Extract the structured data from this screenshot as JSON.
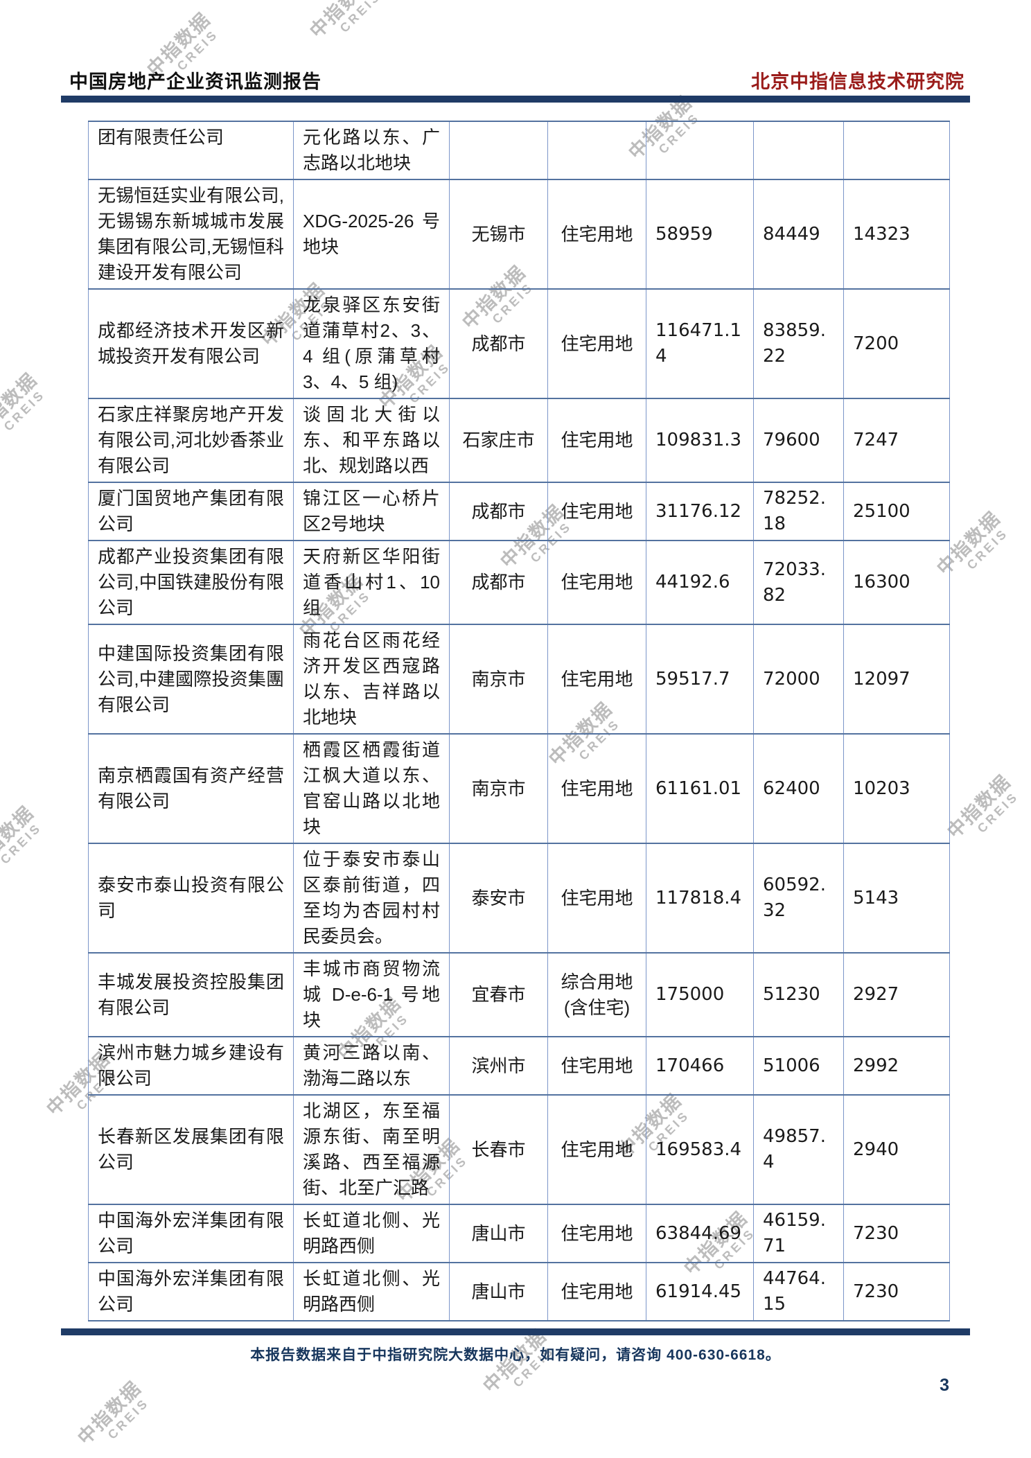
{
  "header": {
    "left_title": "中国房地产企业资讯监测报告",
    "right_title": "北京中指信息技术研究院"
  },
  "watermark": {
    "line1": "中指数据",
    "line2": "CREIS"
  },
  "table": {
    "rows": [
      {
        "company": "团有限责任公司",
        "parcel": "元化路以东、广志路以北地块",
        "city": "",
        "use": "",
        "num1": "",
        "num2": "",
        "num3": ""
      },
      {
        "company": "无锡恒廷实业有限公司,无锡锡东新城城市发展集团有限公司,无锡恒科建设开发有限公司",
        "parcel": "XDG-2025-26 号地块",
        "city": "无锡市",
        "use": "住宅用地",
        "num1": "58959",
        "num2": "84449",
        "num3": "14323"
      },
      {
        "company": "成都经济技术开发区新城投资开发有限公司",
        "parcel": "龙泉驿区东安街道蒲草村2、3、4 组(原蒲草村3、4、5 组)",
        "city": "成都市",
        "use": "住宅用地",
        "num1": "116471.14",
        "num2": "83859.22",
        "num3": "7200"
      },
      {
        "company": "石家庄祥聚房地产开发有限公司,河北妙香茶业有限公司",
        "parcel": "谈固北大街以东、和平东路以北、规划路以西",
        "city": "石家庄市",
        "use": "住宅用地",
        "num1": "109831.3",
        "num2": "79600",
        "num3": "7247"
      },
      {
        "company": "厦门国贸地产集团有限公司",
        "parcel": "锦江区一心桥片区2号地块",
        "city": "成都市",
        "use": "住宅用地",
        "num1": "31176.12",
        "num2": "78252.18",
        "num3": "25100"
      },
      {
        "company": "成都产业投资集团有限公司,中国铁建股份有限公司",
        "parcel": "天府新区华阳街道香山村1、10组",
        "city": "成都市",
        "use": "住宅用地",
        "num1": "44192.6",
        "num2": "72033.82",
        "num3": "16300"
      },
      {
        "company": "中建国际投资集团有限公司,中建國際投资集團有限公司",
        "parcel": "雨花台区雨花经济开发区西寇路以东、吉祥路以北地块",
        "city": "南京市",
        "use": "住宅用地",
        "num1": "59517.7",
        "num2": "72000",
        "num3": "12097"
      },
      {
        "company": "南京栖霞国有资产经营有限公司",
        "parcel": "栖霞区栖霞街道江枫大道以东、官窑山路以北地块",
        "city": "南京市",
        "use": "住宅用地",
        "num1": "61161.01",
        "num2": "62400",
        "num3": "10203"
      },
      {
        "company": "泰安市泰山投资有限公司",
        "parcel": "位于泰安市泰山区泰前街道，四至均为杏园村村民委员会。",
        "city": "泰安市",
        "use": "住宅用地",
        "num1": "117818.4",
        "num2": "60592.32",
        "num3": "5143"
      },
      {
        "company": "丰城发展投资控股集团有限公司",
        "parcel": "丰城市商贸物流城 D-e-6-1 号地块",
        "city": "宜春市",
        "use": "综合用地(含住宅)",
        "num1": "175000",
        "num2": "51230",
        "num3": "2927"
      },
      {
        "company": "滨州市魅力城乡建设有限公司",
        "parcel": "黄河三路以南、渤海二路以东",
        "city": "滨州市",
        "use": "住宅用地",
        "num1": "170466",
        "num2": "51006",
        "num3": "2992"
      },
      {
        "company": "长春新区发展集团有限公司",
        "parcel": "北湖区，东至福源东街、南至明溪路、西至福源街、北至广汇路",
        "city": "长春市",
        "use": "住宅用地",
        "num1": "169583.4",
        "num2": "49857.4",
        "num3": "2940"
      },
      {
        "company": "中国海外宏洋集团有限公司",
        "parcel": "长虹道北侧、光明路西侧",
        "city": "唐山市",
        "use": "住宅用地",
        "num1": "63844.69",
        "num2": "46159.71",
        "num3": "7230"
      },
      {
        "company": "中国海外宏洋集团有限公司",
        "parcel": "长虹道北侧、光明路西侧",
        "city": "唐山市",
        "use": "住宅用地",
        "num1": "61914.45",
        "num2": "44764.15",
        "num3": "7230"
      }
    ]
  },
  "footer": {
    "note": "本报告数据来自于中指研究院大数据中心，如有疑问，请咨询 400-630-6618。",
    "page_number": "3"
  },
  "colors": {
    "rule": "#1f3b66",
    "title_red": "#9a1c1a",
    "border_light": "#7b95c9",
    "border_dark": "#53729f",
    "footer_text": "#17365d"
  }
}
